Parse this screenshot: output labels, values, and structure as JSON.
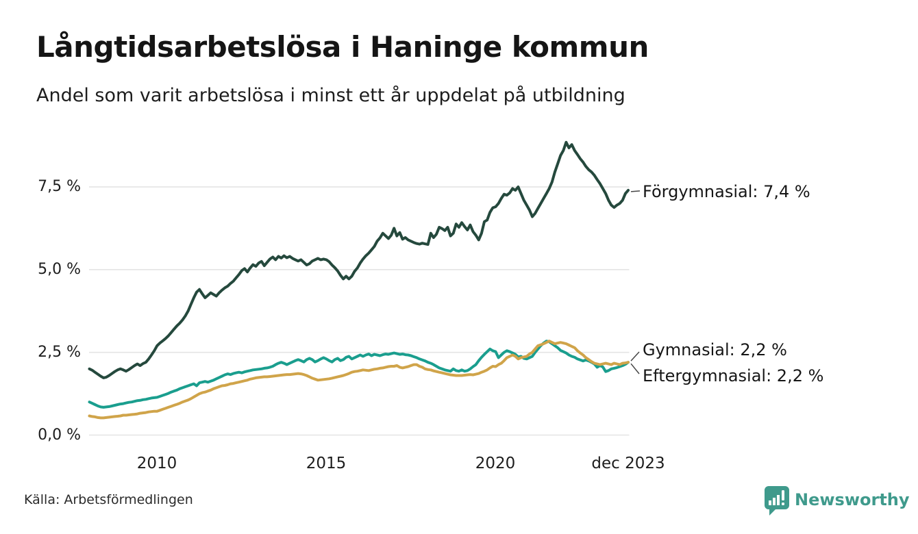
{
  "chart_data": {
    "type": "line",
    "title": "Långtidsarbetslösa i Haninge kommun",
    "subtitle": "Andel som varit arbetslösa i minst ett år uppdelat på utbildning",
    "source": "Källa: Arbetsförmedlingen",
    "brand": "Newsworthy",
    "frequency": "monthly",
    "x_axis": {
      "start": "2008-01",
      "end": "2023-12",
      "ticks": [
        {
          "label": "2010",
          "month_index": 24
        },
        {
          "label": "2015",
          "month_index": 84
        },
        {
          "label": "2020",
          "month_index": 144
        },
        {
          "label": "dec 2023",
          "month_index": 191
        }
      ]
    },
    "y_axis": {
      "unit": "%",
      "range": [
        0,
        9.2
      ],
      "grid": true,
      "ticks": [
        {
          "value": 7.5,
          "label": "7,5 %"
        },
        {
          "value": 5.0,
          "label": "5,0 %"
        },
        {
          "value": 2.5,
          "label": "2,5 %"
        },
        {
          "value": 0.0,
          "label": "0,0 %"
        }
      ]
    },
    "legend": "end-labels",
    "series": [
      {
        "id": "forgymnasial",
        "name": "Förgymnasial",
        "end_label": "Förgymnasial: 7,4 %",
        "last_value": 7.4,
        "color": "#25493d",
        "values": [
          2.0,
          1.96,
          1.9,
          1.84,
          1.78,
          1.73,
          1.75,
          1.8,
          1.86,
          1.92,
          1.97,
          2.0,
          1.97,
          1.93,
          1.98,
          2.04,
          2.1,
          2.15,
          2.1,
          2.16,
          2.2,
          2.3,
          2.42,
          2.55,
          2.7,
          2.78,
          2.85,
          2.92,
          3.0,
          3.1,
          3.2,
          3.3,
          3.38,
          3.48,
          3.6,
          3.75,
          3.95,
          4.15,
          4.32,
          4.4,
          4.27,
          4.15,
          4.22,
          4.3,
          4.25,
          4.2,
          4.3,
          4.38,
          4.45,
          4.5,
          4.58,
          4.65,
          4.75,
          4.85,
          4.97,
          5.03,
          4.93,
          5.05,
          5.15,
          5.1,
          5.2,
          5.25,
          5.12,
          5.22,
          5.32,
          5.38,
          5.3,
          5.4,
          5.35,
          5.42,
          5.36,
          5.4,
          5.34,
          5.3,
          5.26,
          5.3,
          5.22,
          5.14,
          5.18,
          5.26,
          5.3,
          5.34,
          5.3,
          5.32,
          5.3,
          5.24,
          5.14,
          5.06,
          4.96,
          4.83,
          4.72,
          4.8,
          4.72,
          4.8,
          4.95,
          5.05,
          5.2,
          5.32,
          5.42,
          5.5,
          5.6,
          5.7,
          5.86,
          5.96,
          6.1,
          6.02,
          5.94,
          6.04,
          6.25,
          6.02,
          6.12,
          5.92,
          5.97,
          5.9,
          5.86,
          5.82,
          5.79,
          5.77,
          5.8,
          5.78,
          5.76,
          6.1,
          5.97,
          6.07,
          6.28,
          6.24,
          6.18,
          6.28,
          6.02,
          6.1,
          6.38,
          6.28,
          6.42,
          6.3,
          6.2,
          6.35,
          6.15,
          6.04,
          5.9,
          6.1,
          6.45,
          6.5,
          6.73,
          6.87,
          6.9,
          7.0,
          7.15,
          7.28,
          7.25,
          7.32,
          7.45,
          7.4,
          7.5,
          7.3,
          7.1,
          6.95,
          6.8,
          6.6,
          6.7,
          6.85,
          7.0,
          7.15,
          7.3,
          7.45,
          7.65,
          7.95,
          8.2,
          8.45,
          8.6,
          8.85,
          8.68,
          8.78,
          8.6,
          8.48,
          8.35,
          8.25,
          8.12,
          8.02,
          7.95,
          7.85,
          7.72,
          7.6,
          7.45,
          7.3,
          7.1,
          6.95,
          6.88,
          6.95,
          7.0,
          7.1,
          7.3,
          7.4
        ]
      },
      {
        "id": "gymnasial",
        "name": "Gymnasial",
        "end_label": "Gymnasial: 2,2 %",
        "last_value": 2.2,
        "color": "#1a9e8e",
        "values": [
          1.0,
          0.96,
          0.92,
          0.88,
          0.85,
          0.84,
          0.85,
          0.86,
          0.88,
          0.9,
          0.92,
          0.94,
          0.95,
          0.97,
          0.99,
          1.0,
          1.02,
          1.04,
          1.05,
          1.07,
          1.08,
          1.1,
          1.12,
          1.13,
          1.14,
          1.17,
          1.2,
          1.23,
          1.26,
          1.3,
          1.33,
          1.36,
          1.4,
          1.43,
          1.46,
          1.49,
          1.52,
          1.55,
          1.49,
          1.58,
          1.6,
          1.62,
          1.6,
          1.63,
          1.66,
          1.7,
          1.74,
          1.78,
          1.82,
          1.85,
          1.83,
          1.86,
          1.88,
          1.9,
          1.88,
          1.91,
          1.93,
          1.95,
          1.97,
          1.98,
          1.99,
          2.0,
          2.02,
          2.03,
          2.05,
          2.08,
          2.13,
          2.17,
          2.2,
          2.17,
          2.13,
          2.17,
          2.21,
          2.25,
          2.28,
          2.25,
          2.21,
          2.28,
          2.32,
          2.28,
          2.21,
          2.25,
          2.3,
          2.34,
          2.3,
          2.25,
          2.21,
          2.28,
          2.32,
          2.25,
          2.28,
          2.35,
          2.38,
          2.3,
          2.34,
          2.38,
          2.42,
          2.38,
          2.42,
          2.45,
          2.4,
          2.44,
          2.42,
          2.4,
          2.43,
          2.45,
          2.44,
          2.46,
          2.48,
          2.46,
          2.44,
          2.45,
          2.43,
          2.42,
          2.4,
          2.37,
          2.34,
          2.3,
          2.27,
          2.24,
          2.2,
          2.17,
          2.13,
          2.08,
          2.03,
          2.0,
          1.97,
          1.95,
          1.93,
          2.0,
          1.95,
          1.93,
          1.97,
          1.93,
          1.95,
          2.0,
          2.07,
          2.13,
          2.25,
          2.35,
          2.44,
          2.52,
          2.6,
          2.55,
          2.52,
          2.34,
          2.42,
          2.5,
          2.55,
          2.52,
          2.48,
          2.44,
          2.36,
          2.38,
          2.32,
          2.3,
          2.34,
          2.38,
          2.5,
          2.6,
          2.7,
          2.78,
          2.84,
          2.82,
          2.76,
          2.7,
          2.64,
          2.56,
          2.52,
          2.48,
          2.42,
          2.38,
          2.35,
          2.3,
          2.27,
          2.24,
          2.27,
          2.24,
          2.2,
          2.15,
          2.05,
          2.1,
          2.06,
          1.92,
          1.95,
          2.0,
          2.02,
          2.04,
          2.07,
          2.1,
          2.14,
          2.2
        ]
      },
      {
        "id": "eftergymnasial",
        "name": "Eftergymnasial",
        "end_label": "Eftergymnasial: 2,2 %",
        "last_value": 2.2,
        "color": "#d0a44a",
        "values": [
          0.58,
          0.56,
          0.55,
          0.53,
          0.52,
          0.52,
          0.53,
          0.54,
          0.55,
          0.56,
          0.57,
          0.58,
          0.6,
          0.6,
          0.61,
          0.62,
          0.63,
          0.64,
          0.66,
          0.67,
          0.68,
          0.7,
          0.71,
          0.72,
          0.72,
          0.75,
          0.78,
          0.81,
          0.84,
          0.87,
          0.9,
          0.93,
          0.96,
          1.0,
          1.03,
          1.06,
          1.1,
          1.15,
          1.2,
          1.25,
          1.28,
          1.3,
          1.33,
          1.36,
          1.4,
          1.43,
          1.46,
          1.49,
          1.5,
          1.52,
          1.55,
          1.56,
          1.58,
          1.6,
          1.62,
          1.64,
          1.66,
          1.69,
          1.71,
          1.73,
          1.74,
          1.75,
          1.76,
          1.76,
          1.77,
          1.78,
          1.79,
          1.8,
          1.81,
          1.82,
          1.83,
          1.83,
          1.84,
          1.85,
          1.86,
          1.85,
          1.83,
          1.8,
          1.76,
          1.72,
          1.69,
          1.66,
          1.67,
          1.68,
          1.69,
          1.7,
          1.72,
          1.74,
          1.76,
          1.78,
          1.8,
          1.83,
          1.86,
          1.9,
          1.92,
          1.93,
          1.95,
          1.97,
          1.96,
          1.95,
          1.97,
          1.99,
          2.0,
          2.02,
          2.03,
          2.05,
          2.07,
          2.08,
          2.08,
          2.1,
          2.05,
          2.03,
          2.05,
          2.07,
          2.1,
          2.13,
          2.13,
          2.08,
          2.05,
          2.0,
          1.98,
          1.97,
          1.94,
          1.92,
          1.9,
          1.88,
          1.86,
          1.84,
          1.82,
          1.81,
          1.8,
          1.8,
          1.8,
          1.81,
          1.82,
          1.83,
          1.82,
          1.84,
          1.86,
          1.9,
          1.93,
          1.97,
          2.03,
          2.08,
          2.07,
          2.13,
          2.17,
          2.25,
          2.34,
          2.38,
          2.42,
          2.38,
          2.3,
          2.34,
          2.36,
          2.38,
          2.45,
          2.5,
          2.6,
          2.7,
          2.73,
          2.76,
          2.8,
          2.84,
          2.8,
          2.76,
          2.78,
          2.8,
          2.78,
          2.76,
          2.72,
          2.68,
          2.64,
          2.55,
          2.48,
          2.42,
          2.34,
          2.28,
          2.22,
          2.17,
          2.15,
          2.13,
          2.15,
          2.17,
          2.15,
          2.13,
          2.17,
          2.15,
          2.13,
          2.17,
          2.18,
          2.2
        ]
      }
    ]
  },
  "colors": {
    "background": "#ffffff",
    "grid": "#e4e4e4",
    "text": "#1d1d1d",
    "connector": "#454545",
    "brand_teal": "#3f9a8c"
  }
}
